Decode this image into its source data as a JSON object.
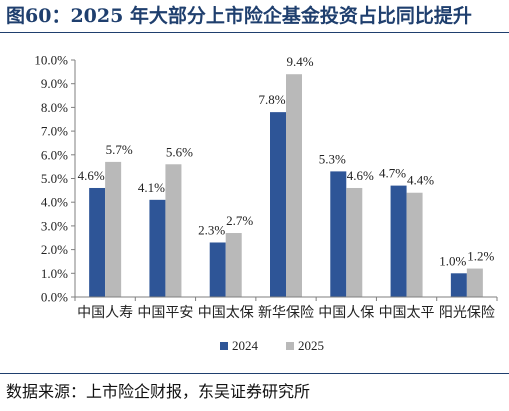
{
  "header": {
    "title": "图60：2025 年大部分上市险企基金投资占比同比提升"
  },
  "footer": {
    "source": "数据来源：上市险企财报，东吴证券研究所"
  },
  "chart_data": {
    "type": "bar",
    "title": "",
    "xlabel": "",
    "ylabel": "",
    "categories": [
      "中国人寿",
      "中国平安",
      "中国太保",
      "新华保险",
      "中国人保",
      "中国太平",
      "阳光保险"
    ],
    "series": [
      {
        "name": "2024",
        "values": [
          4.6,
          4.1,
          2.3,
          7.8,
          5.3,
          4.7,
          1.0
        ],
        "labels": [
          "4.6%",
          "4.1%",
          "2.3%",
          "7.8%",
          "5.3%",
          "4.7%",
          "1.0%"
        ],
        "color": "#2e5597"
      },
      {
        "name": "2025",
        "values": [
          5.7,
          5.6,
          2.7,
          9.4,
          4.6,
          4.4,
          1.2
        ],
        "labels": [
          "5.7%",
          "5.6%",
          "2.7%",
          "9.4%",
          "4.6%",
          "4.4%",
          "1.2%"
        ],
        "color": "#b9b9b9"
      }
    ],
    "ylim": [
      0,
      10
    ],
    "yticks": [
      "0.0%",
      "1.0%",
      "2.0%",
      "3.0%",
      "4.0%",
      "5.0%",
      "6.0%",
      "7.0%",
      "8.0%",
      "9.0%",
      "10.0%"
    ],
    "grid": false,
    "legend_position": "bottom-center",
    "axis_color": "#7f7f7f"
  }
}
